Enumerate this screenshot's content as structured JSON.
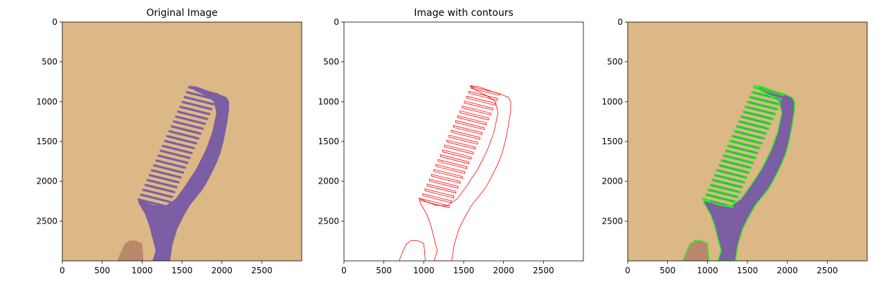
{
  "chart_data": [
    {
      "type": "image",
      "title": "Original Image",
      "xlim": [
        0,
        3000
      ],
      "ylim": [
        3000,
        0
      ],
      "xticks": [
        0,
        500,
        1000,
        1500,
        2000,
        2500
      ],
      "yticks": [
        0,
        500,
        1000,
        1500,
        2000,
        2500
      ],
      "content": "photo-comb",
      "colors": {
        "background": "#dcb886",
        "comb": "#7b5ea3",
        "finger": "#b9886c"
      }
    },
    {
      "type": "image",
      "title": "Image with contours",
      "xlim": [
        0,
        3000
      ],
      "ylim": [
        3000,
        0
      ],
      "xticks": [
        0,
        500,
        1000,
        1500,
        2000,
        2500
      ],
      "yticks": [
        0,
        500,
        1000,
        1500,
        2000,
        2500
      ],
      "content": "contours-only",
      "colors": {
        "background": "#ffffff",
        "contour": "#ff0000"
      }
    },
    {
      "type": "image",
      "title": "",
      "xlim": [
        0,
        3000
      ],
      "ylim": [
        3000,
        0
      ],
      "xticks": [
        0,
        500,
        1000,
        1500,
        2000,
        2500
      ],
      "yticks": [
        0,
        500,
        1000,
        1500,
        2000,
        2500
      ],
      "content": "photo-with-contours",
      "colors": {
        "background": "#dcb886",
        "comb": "#7b5ea3",
        "finger": "#b9886c",
        "contour": "#33ee22"
      }
    }
  ]
}
